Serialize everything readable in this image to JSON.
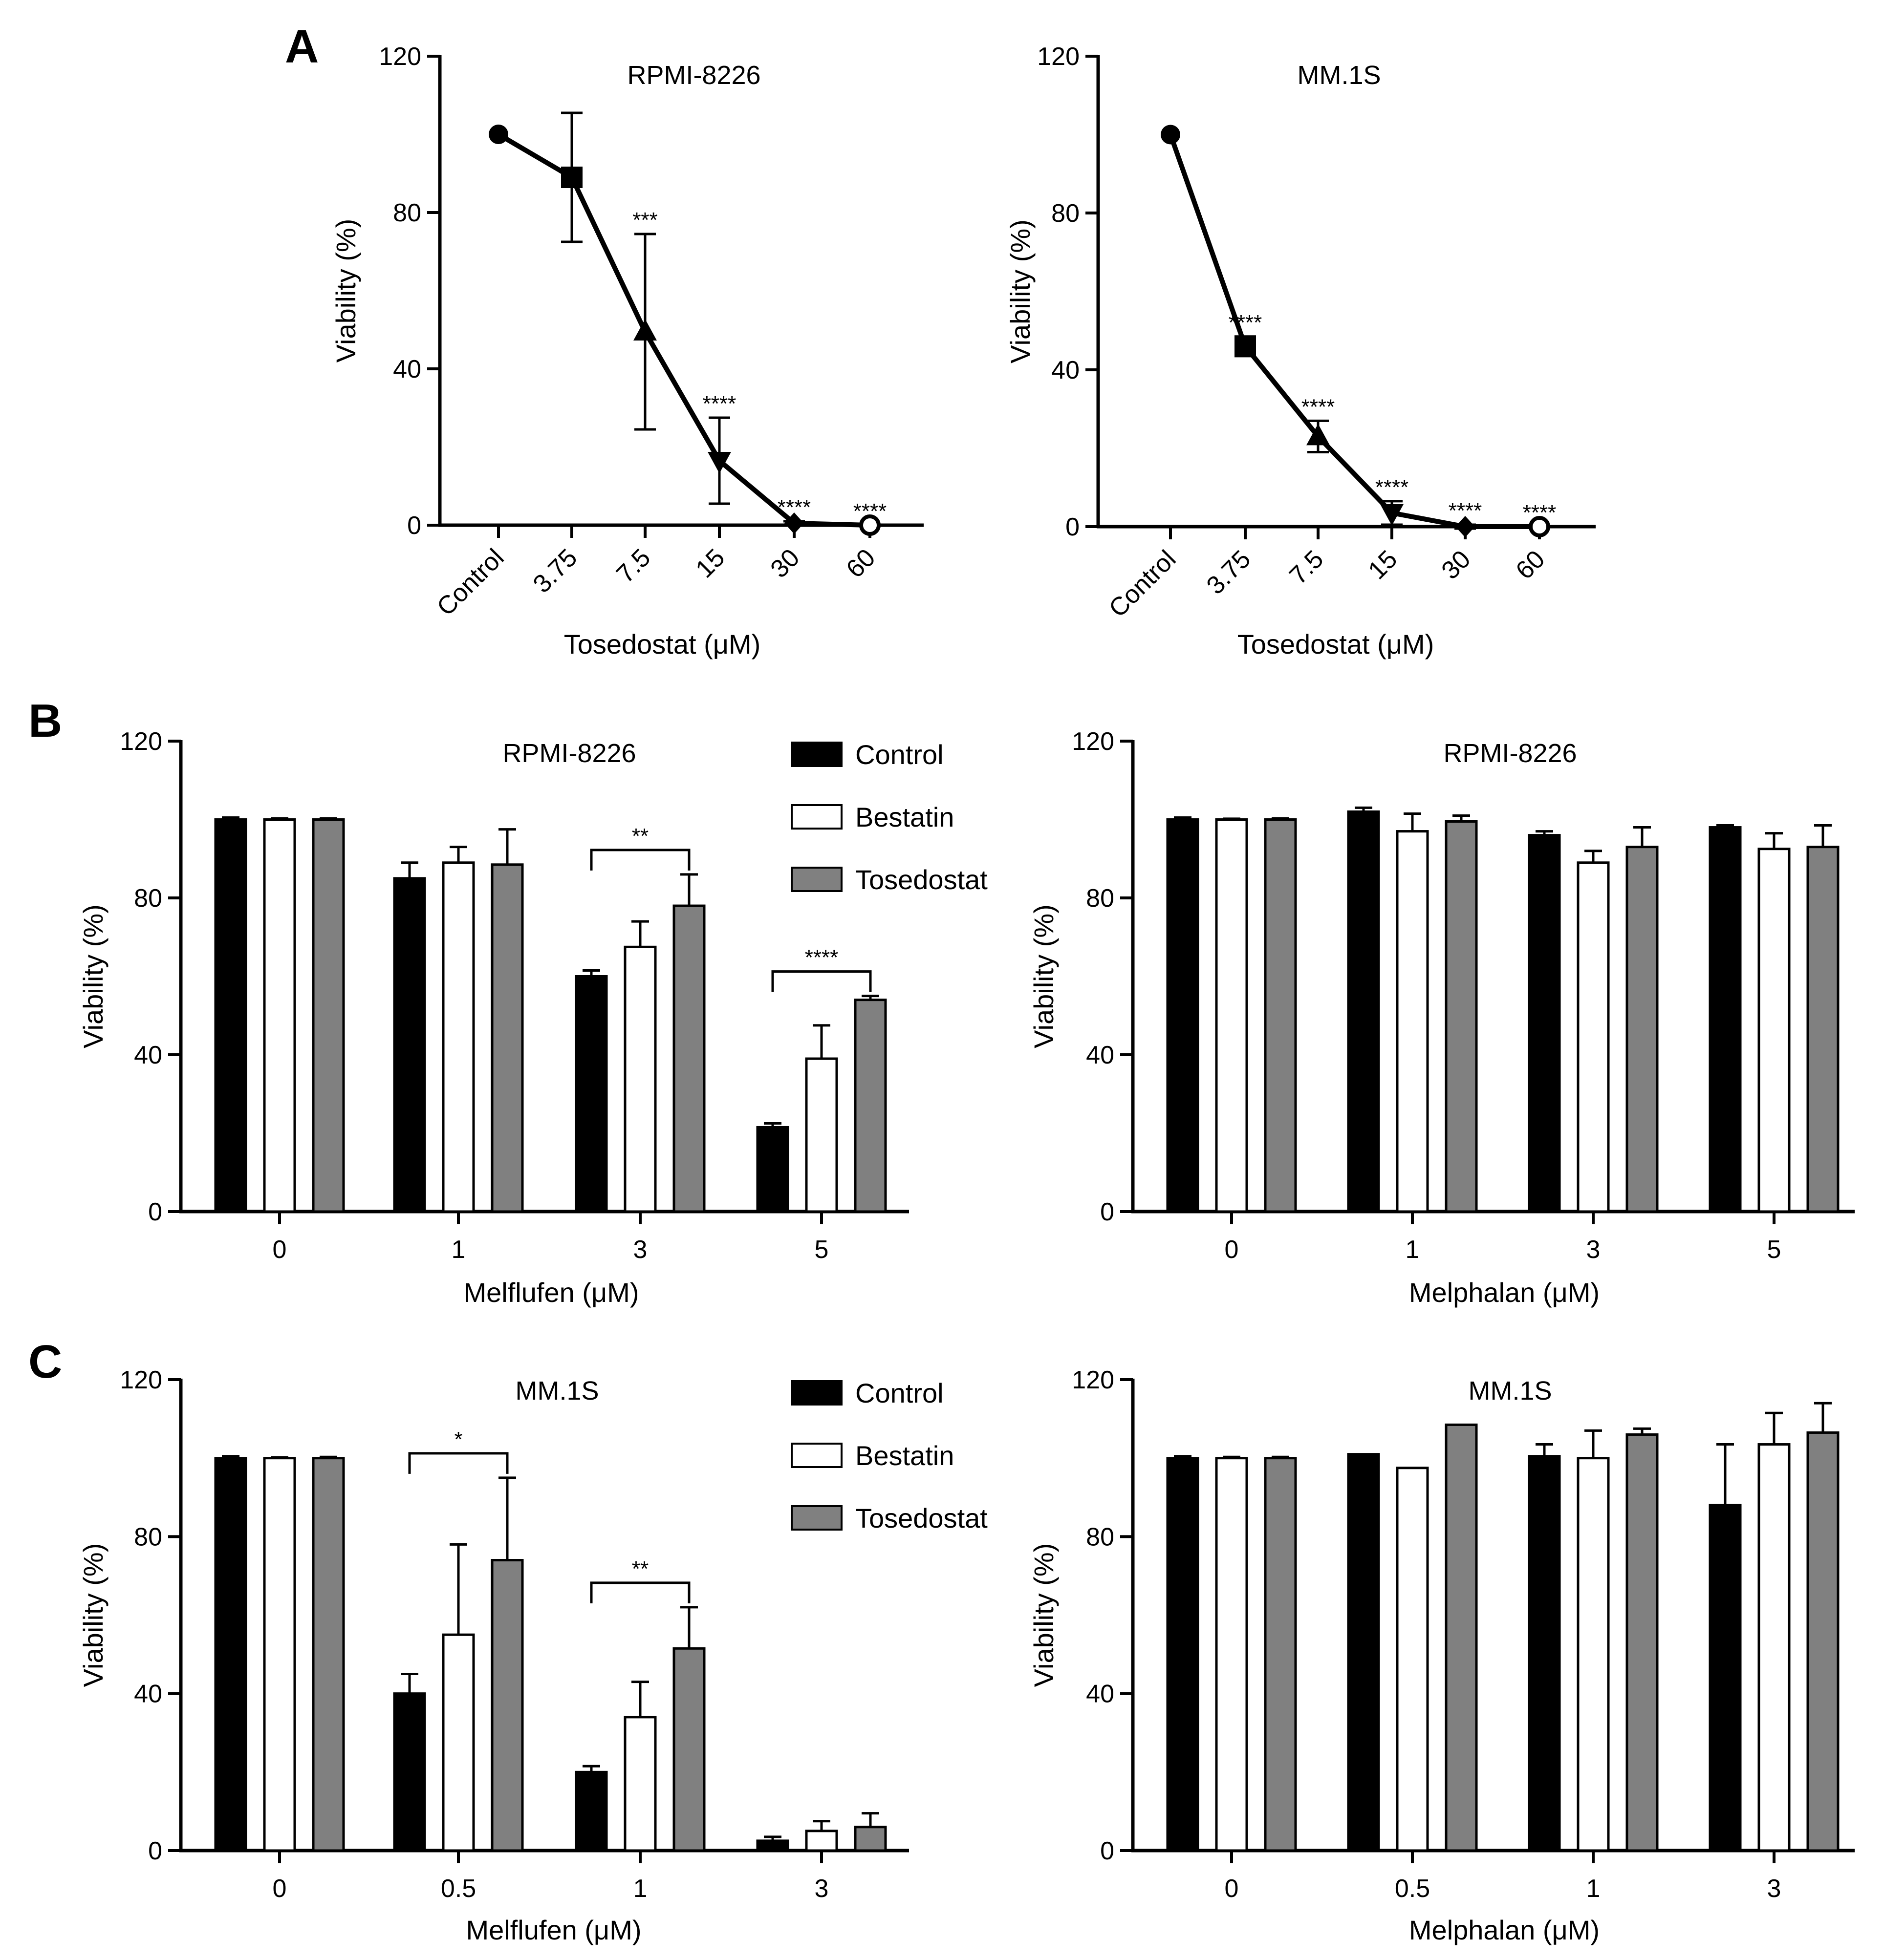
{
  "panel_letters": [
    "A",
    "B",
    "C"
  ],
  "legend": [
    {
      "name": "Control",
      "color": "#000000"
    },
    {
      "name": "Bestatin",
      "color": "#ffffff"
    },
    {
      "name": "Tosedostat",
      "color": "#808080"
    }
  ],
  "chart_data": [
    {
      "id": "A-left",
      "type": "line",
      "title": "RPMI-8226",
      "xlabel": "Tosedostat (μM)",
      "ylabel": "Viability (%)",
      "categories": [
        "Control",
        "3.75",
        "7.5",
        "15",
        "30",
        "60"
      ],
      "values": [
        100,
        89,
        49.5,
        16.5,
        0.5,
        0
      ],
      "errors": [
        0,
        16.5,
        25,
        11,
        0.5,
        0
      ],
      "markers": [
        "circle",
        "square",
        "triangle-up",
        "triangle-down",
        "diamond",
        "open-circle"
      ],
      "significance": [
        "",
        "",
        "***",
        "****",
        "****",
        "****"
      ],
      "yticks": [
        0,
        40,
        80,
        120
      ],
      "ylim": [
        0,
        120
      ]
    },
    {
      "id": "A-right",
      "type": "line",
      "title": "MM.1S",
      "xlabel": "Tosedostat (μM)",
      "ylabel": "Viability (%)",
      "categories": [
        "Control",
        "3.75",
        "7.5",
        "15",
        "30",
        "60"
      ],
      "values": [
        100,
        46,
        23,
        3.5,
        0,
        0
      ],
      "errors": [
        0,
        2.5,
        4,
        3,
        0.5,
        0
      ],
      "markers": [
        "circle",
        "square",
        "triangle-up",
        "triangle-down",
        "diamond",
        "open-circle"
      ],
      "significance": [
        "",
        "****",
        "****",
        "****",
        "****",
        "****"
      ],
      "yticks": [
        0,
        40,
        80,
        120
      ],
      "ylim": [
        0,
        120
      ]
    },
    {
      "id": "B-left",
      "type": "bar",
      "title": "RPMI-8226",
      "xlabel": "Melflufen (μM)",
      "ylabel": "Viability (%)",
      "categories": [
        "0",
        "1",
        "3",
        "5"
      ],
      "series": [
        {
          "name": "Control",
          "values": [
            100,
            85,
            60,
            21.5
          ],
          "errors": [
            0.5,
            4,
            1.5,
            1
          ]
        },
        {
          "name": "Bestatin",
          "values": [
            100,
            89,
            67.5,
            39
          ],
          "errors": [
            0.3,
            4,
            6.5,
            8.5
          ]
        },
        {
          "name": "Tosedostat",
          "values": [
            100,
            88.5,
            78,
            54
          ],
          "errors": [
            0.3,
            9,
            8,
            1
          ]
        }
      ],
      "brackets": [
        {
          "category": 2,
          "label": "**"
        },
        {
          "category": 3,
          "label": "****"
        }
      ],
      "legend": true,
      "yticks": [
        0,
        40,
        80,
        120
      ],
      "ylim": [
        0,
        120
      ]
    },
    {
      "id": "B-right",
      "type": "bar",
      "title": "RPMI-8226",
      "xlabel": "Melphalan (μM)",
      "ylabel": "Viability (%)",
      "categories": [
        "0",
        "1",
        "3",
        "5"
      ],
      "series": [
        {
          "name": "Control",
          "values": [
            100,
            102,
            96,
            98
          ],
          "errors": [
            0.5,
            1,
            1,
            0.5
          ]
        },
        {
          "name": "Bestatin",
          "values": [
            100,
            97,
            89,
            92.5
          ],
          "errors": [
            0.2,
            4.5,
            3,
            4
          ]
        },
        {
          "name": "Tosedostat",
          "values": [
            100,
            99.5,
            93,
            93
          ],
          "errors": [
            0.3,
            1.5,
            5,
            5.5
          ]
        }
      ],
      "brackets": [],
      "legend": false,
      "yticks": [
        0,
        40,
        80,
        120
      ],
      "ylim": [
        0,
        120
      ]
    },
    {
      "id": "C-left",
      "type": "bar",
      "title": "MM.1S",
      "xlabel": "Melflufen (μM)",
      "ylabel": "Viability (%)",
      "categories": [
        "0",
        "0.5",
        "1",
        "3"
      ],
      "series": [
        {
          "name": "Control",
          "values": [
            100,
            40,
            20,
            2.5
          ],
          "errors": [
            0.5,
            5,
            1.5,
            1
          ]
        },
        {
          "name": "Bestatin",
          "values": [
            100,
            55,
            34,
            5
          ],
          "errors": [
            0.2,
            23,
            9,
            2.5
          ]
        },
        {
          "name": "Tosedostat",
          "values": [
            100,
            74,
            51.5,
            6
          ],
          "errors": [
            0.3,
            21,
            10.5,
            3.5
          ]
        }
      ],
      "brackets": [
        {
          "category": 1,
          "label": "*"
        },
        {
          "category": 2,
          "label": "**"
        }
      ],
      "legend": true,
      "yticks": [
        0,
        40,
        80,
        120
      ],
      "ylim": [
        0,
        120
      ]
    },
    {
      "id": "C-right",
      "type": "bar",
      "title": "MM.1S",
      "xlabel": "Melphalan (μM)",
      "ylabel": "Viability (%)",
      "categories": [
        "0",
        "0.5",
        "1",
        "3"
      ],
      "series": [
        {
          "name": "Control",
          "values": [
            100,
            101,
            100.5,
            88
          ],
          "errors": [
            0.5,
            0,
            3,
            15.5
          ]
        },
        {
          "name": "Bestatin",
          "values": [
            100,
            97.5,
            100,
            103.5
          ],
          "errors": [
            0.3,
            0,
            7,
            8
          ]
        },
        {
          "name": "Tosedostat",
          "values": [
            100,
            108.5,
            106,
            106.5
          ],
          "errors": [
            0.3,
            0,
            1.5,
            7.5
          ]
        }
      ],
      "brackets": [],
      "legend": false,
      "yticks": [
        0,
        40,
        80,
        120
      ],
      "ylim": [
        0,
        120
      ]
    }
  ]
}
